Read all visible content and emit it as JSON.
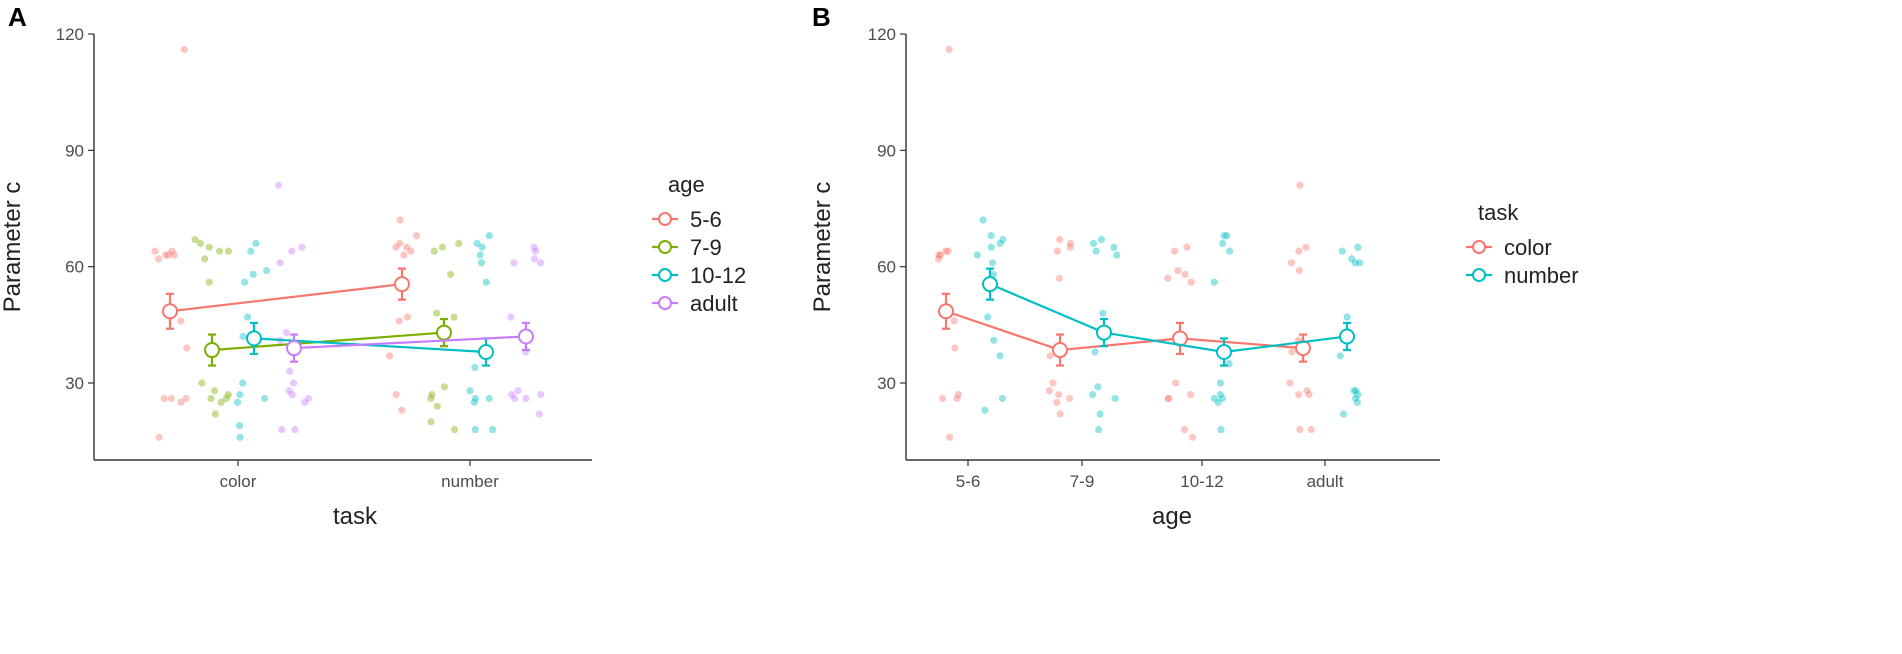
{
  "chart_data": [
    {
      "type": "scatter",
      "panel_label": "A",
      "xlabel": "task",
      "ylabel": "Parameter c",
      "ylim": [
        10,
        120
      ],
      "yticks": [
        30,
        60,
        90,
        120
      ],
      "categories": [
        "color",
        "number"
      ],
      "legend": {
        "title": "age",
        "position": "right",
        "entries": [
          "5-6",
          "7-9",
          "10-12",
          "adult"
        ]
      },
      "series": [
        {
          "name": "5-6",
          "color": "#f8766d",
          "x": [
            "color",
            "number"
          ],
          "mean": [
            48.5,
            55.5
          ],
          "se": [
            4.5,
            4.0
          ],
          "points": {
            "color": [
              116,
              64,
              64,
              63,
              63,
              63,
              62,
              26,
              26,
              26,
              25,
              16,
              39,
              46
            ],
            "number": [
              72,
              68,
              66,
              65,
              65,
              64,
              63,
              47,
              46,
              37,
              27,
              23
            ]
          }
        },
        {
          "name": "7-9",
          "color": "#7cae00",
          "x": [
            "color",
            "number"
          ],
          "mean": [
            38.5,
            43.0
          ],
          "se": [
            4.0,
            3.5
          ],
          "points": {
            "color": [
              67,
              66,
              65,
              64,
              64,
              62,
              56,
              30,
              28,
              27,
              26,
              26,
              25,
              22
            ],
            "number": [
              66,
              65,
              64,
              58,
              47,
              48,
              29,
              27,
              26,
              24,
              20,
              18
            ]
          }
        },
        {
          "name": "10-12",
          "color": "#00bfc4",
          "x": [
            "color",
            "number"
          ],
          "mean": [
            41.5,
            38.0
          ],
          "se": [
            4.0,
            3.5
          ],
          "points": {
            "color": [
              66,
              64,
              59,
              58,
              56,
              47,
              42,
              30,
              27,
              26,
              25,
              16,
              19
            ],
            "number": [
              68,
              66,
              65,
              63,
              61,
              56,
              34,
              28,
              26,
              26,
              25,
              18,
              18
            ]
          }
        },
        {
          "name": "adult",
          "color": "#c77cff",
          "x": [
            "color",
            "number"
          ],
          "mean": [
            39.0,
            42.0
          ],
          "se": [
            3.5,
            3.5
          ],
          "points": {
            "color": [
              81,
              65,
              64,
              61,
              43,
              41,
              33,
              30,
              28,
              27,
              26,
              25,
              18,
              18
            ],
            "number": [
              65,
              64,
              62,
              61,
              61,
              47,
              38,
              28,
              27,
              27,
              26,
              26,
              22
            ]
          }
        }
      ]
    },
    {
      "type": "scatter",
      "panel_label": "B",
      "xlabel": "age",
      "ylabel": "Parameter c",
      "ylim": [
        10,
        120
      ],
      "yticks": [
        30,
        60,
        90,
        120
      ],
      "categories": [
        "5-6",
        "7-9",
        "10-12",
        "adult"
      ],
      "legend": {
        "title": "task",
        "position": "right",
        "entries": [
          "color",
          "number"
        ]
      },
      "series": [
        {
          "name": "color",
          "color": "#f8766d",
          "mean": [
            48.5,
            38.5,
            41.5,
            39.0
          ],
          "se": [
            4.5,
            4.0,
            4.0,
            3.5
          ],
          "points": [
            [
              116,
              64,
              64,
              63,
              63,
              62,
              46,
              39,
              27,
              26,
              26,
              16
            ],
            [
              67,
              66,
              65,
              64,
              57,
              37,
              30,
              28,
              27,
              26,
              25,
              22
            ],
            [
              65,
              64,
              59,
              58,
              57,
              56,
              30,
              27,
              26,
              26,
              18,
              16
            ],
            [
              81,
              65,
              64,
              61,
              59,
              41,
              38,
              30,
              28,
              27,
              27,
              18,
              18
            ]
          ]
        },
        {
          "name": "number",
          "color": "#00bfc4",
          "mean": [
            55.5,
            43.0,
            38.0,
            42.0
          ],
          "se": [
            4.0,
            3.5,
            3.5,
            3.5
          ],
          "points": [
            [
              72,
              68,
              67,
              66,
              65,
              63,
              61,
              58,
              47,
              41,
              37,
              26,
              23
            ],
            [
              67,
              66,
              65,
              64,
              63,
              48,
              38,
              29,
              27,
              26,
              22,
              18
            ],
            [
              68,
              68,
              66,
              64,
              56,
              35,
              30,
              27,
              26,
              26,
              25,
              18
            ],
            [
              65,
              64,
              62,
              61,
              61,
              47,
              37,
              28,
              28,
              27,
              26,
              25,
              22
            ]
          ]
        }
      ]
    }
  ]
}
